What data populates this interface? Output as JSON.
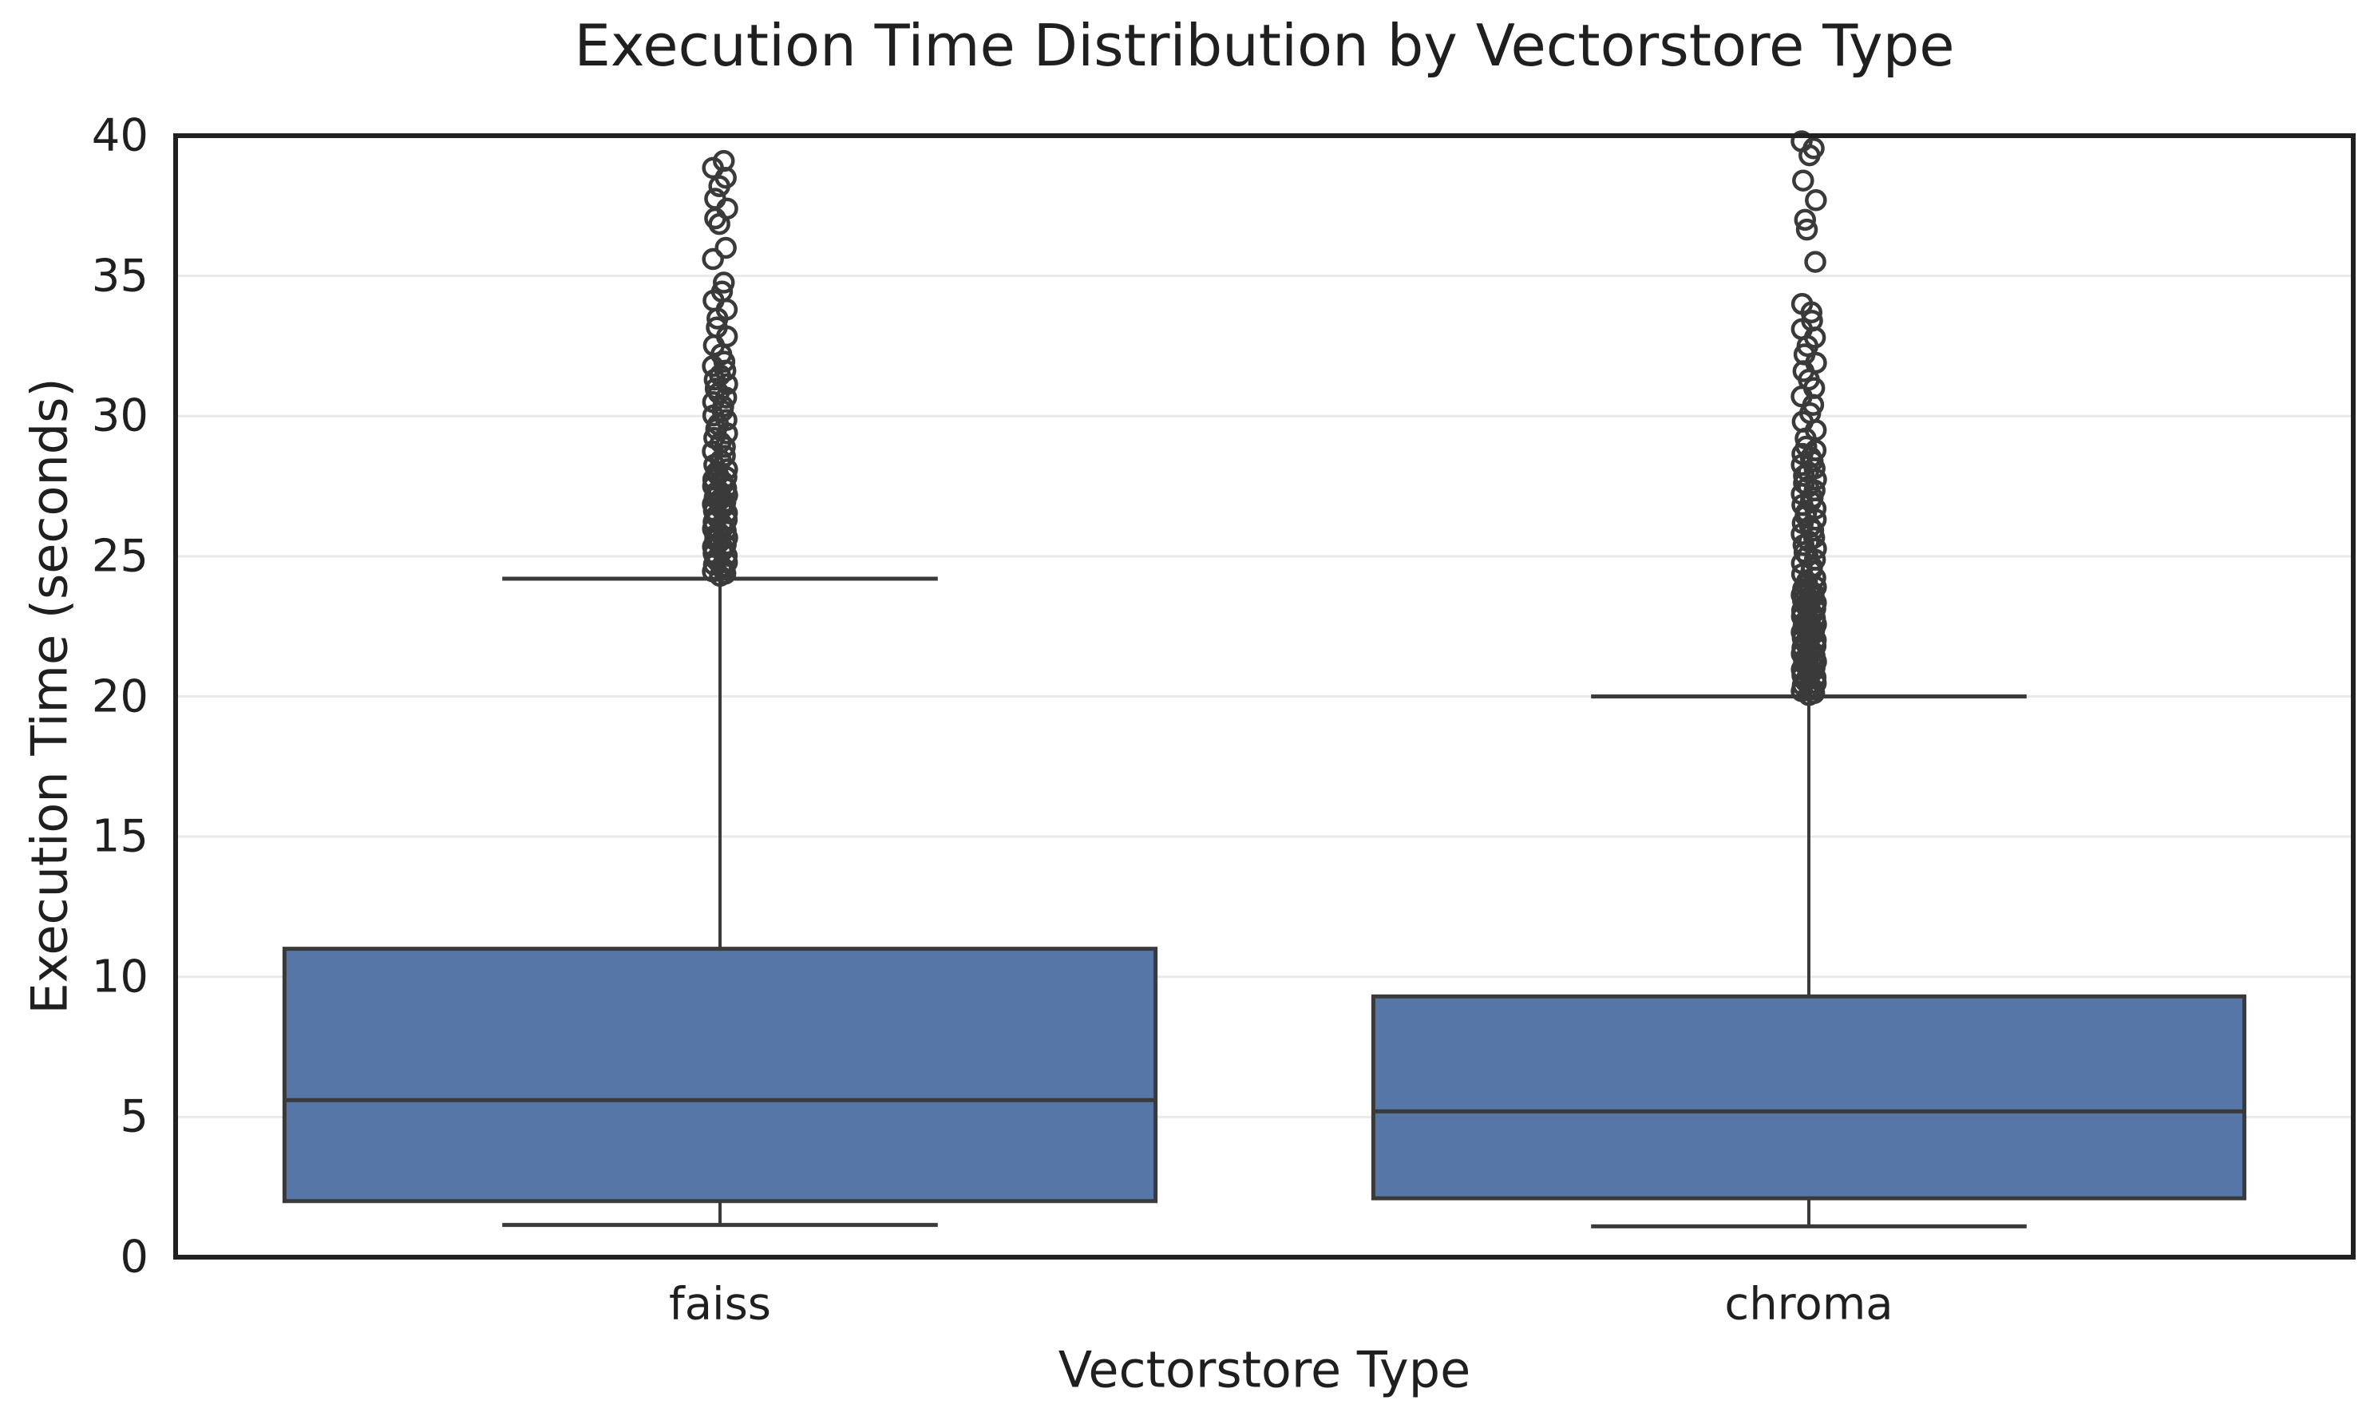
{
  "title": "Execution Time Distribution by Vectorstore Type",
  "colors": {
    "box_fill": "#5776A8",
    "line": "#3A3A3A",
    "spine": "#212121",
    "grid": "#E9E9E9",
    "text": "#1F1F1F",
    "background": "#FFFFFF"
  },
  "chart_data": {
    "type": "box",
    "title": "Execution Time Distribution by Vectorstore Type",
    "xlabel": "Vectorstore Type",
    "ylabel": "Execution Time (seconds)",
    "ylim": [
      0,
      40
    ],
    "yticks": [
      0,
      5,
      10,
      15,
      20,
      25,
      30,
      35,
      40
    ],
    "grid": "horizontal-light",
    "legend": "none",
    "categories": [
      "faiss",
      "chroma"
    ],
    "boxes": [
      {
        "label": "faiss",
        "whisker_low": 1.15,
        "q1": 2.0,
        "median": 5.6,
        "q3": 11.0,
        "whisker_high": 24.2,
        "outliers": [
          35.6,
          36.0,
          36.85,
          37.05,
          37.4,
          37.75,
          38.2,
          38.5,
          38.85,
          39.1
        ],
        "outlier_bands": [
          {
            "from": 24.3,
            "to": 28.0,
            "step": 0.08
          },
          {
            "from": 28.1,
            "to": 32.0,
            "step": 0.16
          },
          {
            "from": 32.2,
            "to": 35.0,
            "step": 0.32
          }
        ]
      },
      {
        "label": "chroma",
        "whisker_low": 1.1,
        "q1": 2.1,
        "median": 5.2,
        "q3": 9.3,
        "whisker_high": 20.0,
        "outliers": [
          35.5,
          36.65,
          37.0,
          37.7,
          38.4,
          39.3,
          39.55,
          39.8
        ],
        "outlier_bands": [
          {
            "from": 20.05,
            "to": 24.0,
            "step": 0.07
          },
          {
            "from": 24.1,
            "to": 29.0,
            "step": 0.13
          },
          {
            "from": 29.2,
            "to": 34.0,
            "step": 0.3
          }
        ]
      }
    ]
  }
}
